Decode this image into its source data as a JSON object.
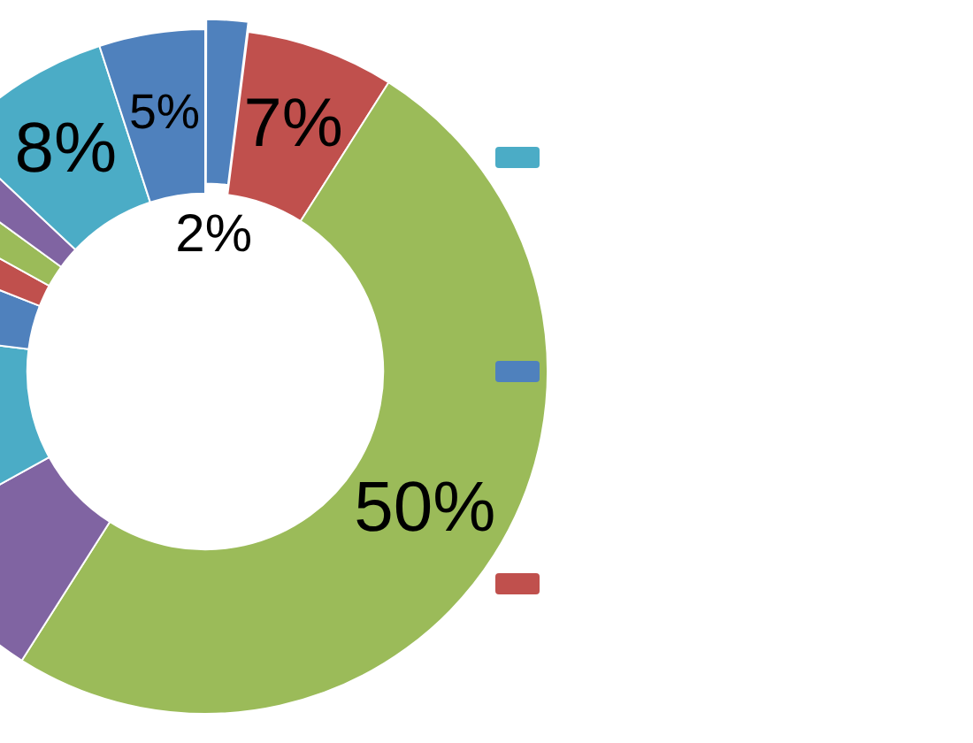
{
  "chart_data": {
    "type": "donut",
    "categories": [
      null,
      null,
      null,
      null,
      null,
      null,
      null,
      null,
      null,
      null,
      null
    ],
    "values": [
      2,
      7,
      50,
      8,
      10,
      4,
      2,
      2,
      2,
      8,
      5
    ],
    "colors": [
      "#4f81bd",
      "#c0504d",
      "#9bbb59",
      "#8064a2",
      "#4bacc6",
      "#4f81bd",
      "#c0504d",
      "#9bbb59",
      "#8064a2",
      "#4bacc6",
      "#4f81bd"
    ],
    "value_labels": [
      "2%",
      "7%",
      "50%",
      null,
      null,
      null,
      null,
      null,
      null,
      "8%",
      "5%"
    ]
  }
}
